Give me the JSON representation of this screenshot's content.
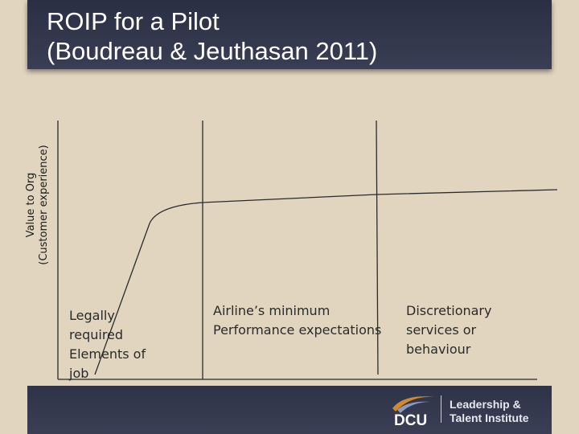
{
  "header": {
    "title_line1": "ROIP for a Pilot",
    "title_line2": "(Boudreau & Jeuthasan 2011)"
  },
  "diagram": {
    "y_axis_label_line1": "Value to Org",
    "y_axis_label_line2": "(Customer experience)",
    "regions": [
      {
        "lines": [
          "Legally",
          "required",
          "Elements of",
          "job"
        ]
      },
      {
        "lines": [
          "Airline’s minimum",
          "Performance expectations"
        ]
      },
      {
        "lines": [
          "Discretionary",
          "services or",
          "behaviour"
        ]
      }
    ]
  },
  "footer": {
    "logo_text": "DCU",
    "institute_line1": "Leadership &",
    "institute_line2": "Talent Institute"
  },
  "colors": {
    "background": "#e2d5c0",
    "title_bar": "#2b2f44",
    "title_text": "#ffffff",
    "line": "#2a2a2a",
    "logo_accent": "#d08a2a"
  }
}
